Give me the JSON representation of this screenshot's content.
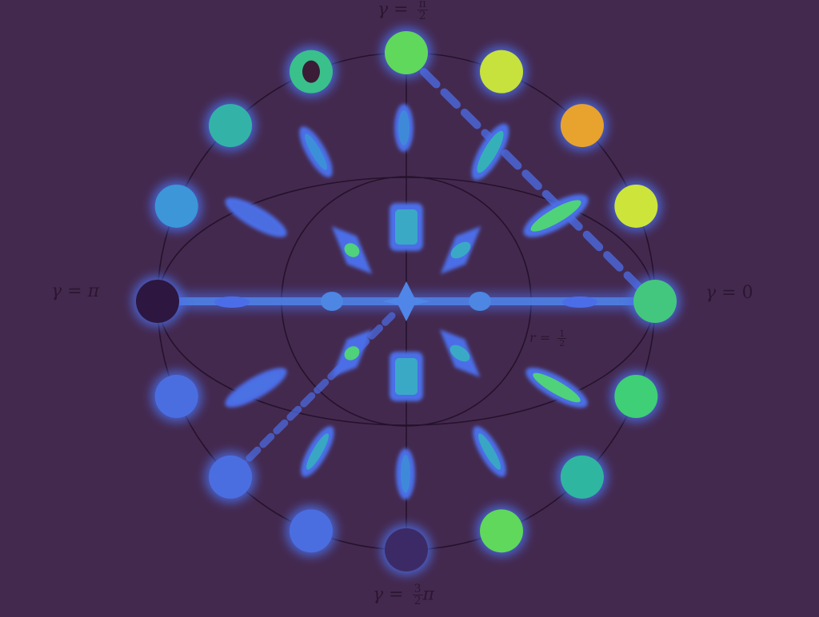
{
  "colors": {
    "background": "#44294f",
    "ink": "#2a1730",
    "glow": "#4b6ee8"
  },
  "labels": {
    "gamma": "γ",
    "eq": "=",
    "pi": "π",
    "zero": "0",
    "half_num": "π",
    "half_den": "2",
    "three_num": "3",
    "three_den": "2",
    "r": "r",
    "r_num": "1",
    "r_den": "2"
  },
  "outer_blobs": [
    {
      "name": "blob-gamma-0",
      "fill": "#43c77e"
    },
    {
      "name": "blob-outer-2",
      "fill": "#cde53a"
    },
    {
      "name": "blob-outer-3",
      "fill": "#e8a32e"
    },
    {
      "name": "blob-outer-4",
      "fill": "#c7e23c"
    },
    {
      "name": "blob-outer-5",
      "fill": "#5fd85c"
    },
    {
      "name": "blob-outer-6",
      "fill": "#3ac08b"
    },
    {
      "name": "blob-gamma-half-pi",
      "fill": "#33b3a8"
    },
    {
      "name": "blob-outer-8",
      "fill": "#3c96d8"
    },
    {
      "name": "blob-outer-9",
      "fill": "#2d163f"
    },
    {
      "name": "blob-outer-10",
      "fill": "#4a6ee0"
    },
    {
      "name": "blob-gamma-pi",
      "fill": "#4a6ee0"
    },
    {
      "name": "blob-outer-12",
      "fill": "#4a6ee0"
    },
    {
      "name": "blob-outer-13",
      "fill": "#3c2a66"
    },
    {
      "name": "blob-outer-14",
      "fill": "#5fd85c"
    },
    {
      "name": "blob-gamma-three-half-pi",
      "fill": "#2fb6a0"
    },
    {
      "name": "blob-outer-16",
      "fill": "#3fcf76"
    }
  ]
}
